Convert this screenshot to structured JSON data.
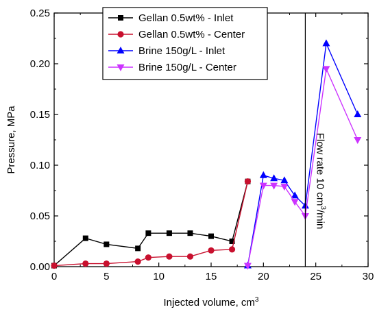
{
  "chart_data": {
    "type": "line",
    "xlabel": "Injected volume, cm",
    "xlabel_superscript": "3",
    "ylabel": "Pressure, MPa",
    "xlim": [
      0,
      30
    ],
    "ylim": [
      0,
      0.25
    ],
    "xticks": [
      0,
      5,
      10,
      15,
      20,
      25,
      30
    ],
    "yticks": [
      0.0,
      0.05,
      0.1,
      0.15,
      0.2,
      0.25
    ],
    "xtick_labels": [
      "0",
      "5",
      "10",
      "15",
      "20",
      "25",
      "30"
    ],
    "ytick_labels": [
      "0.00",
      "0.05",
      "0.10",
      "0.15",
      "0.20",
      "0.25"
    ],
    "grid": false,
    "legend_position": "top-left",
    "annotation": {
      "text_main": "Flow rate 10 cm",
      "text_sup": "3",
      "text_end": "/min",
      "x": 24
    },
    "series": [
      {
        "name": "Gellan 0.5wt% - Inlet",
        "color": "#000000",
        "marker": "square",
        "x": [
          0,
          3,
          5,
          8,
          9,
          11,
          13,
          15,
          17,
          18.5
        ],
        "y": [
          0.001,
          0.028,
          0.022,
          0.018,
          0.033,
          0.033,
          0.033,
          0.03,
          0.025,
          0.084
        ]
      },
      {
        "name": "Gellan 0.5wt% - Center",
        "color": "#c8102e",
        "marker": "circle",
        "x": [
          0,
          3,
          5,
          8,
          9,
          11,
          13,
          15,
          17,
          18.5
        ],
        "y": [
          0.001,
          0.003,
          0.003,
          0.005,
          0.009,
          0.01,
          0.01,
          0.016,
          0.017,
          0.084
        ]
      },
      {
        "name": "Brine 150g/L - Inlet",
        "color": "#0000ff",
        "marker": "triangle-up",
        "x": [
          18.5,
          20,
          21,
          22,
          23,
          24,
          26,
          29
        ],
        "y": [
          0.001,
          0.09,
          0.087,
          0.085,
          0.07,
          0.06,
          0.22,
          0.15
        ]
      },
      {
        "name": "Brine 150g/L - Center",
        "color": "#cc33ff",
        "marker": "triangle-down",
        "x": [
          18.5,
          20,
          21,
          22,
          23,
          24,
          26,
          29
        ],
        "y": [
          0.001,
          0.08,
          0.08,
          0.079,
          0.064,
          0.05,
          0.195,
          0.125
        ]
      }
    ]
  }
}
